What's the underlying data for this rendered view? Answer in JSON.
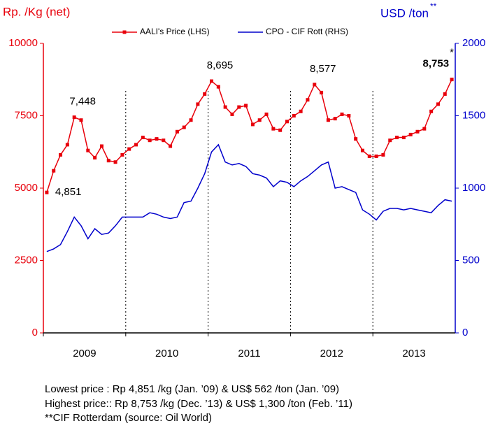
{
  "chart_data": {
    "type": "line",
    "y_label": "Rp. /Kg (net)",
    "y2_label": "USD /ton",
    "y2_label_mark": "**",
    "categories": [
      null,
      null,
      null,
      null,
      null,
      "2009",
      null,
      null,
      null,
      null,
      null,
      null,
      null,
      null,
      null,
      null,
      null,
      "2010",
      null,
      null,
      null,
      null,
      null,
      null,
      null,
      null,
      null,
      null,
      null,
      "2011",
      null,
      null,
      null,
      null,
      null,
      null,
      null,
      null,
      null,
      null,
      null,
      "2012",
      null,
      null,
      null,
      null,
      null,
      null,
      null,
      null,
      null,
      null,
      null,
      "2013",
      null,
      null,
      null,
      null,
      null,
      null
    ],
    "series": [
      {
        "name": "AALI's Price (LHS)",
        "color": "#e8000b",
        "axis": "y",
        "values": [
          4851,
          5600,
          6150,
          6500,
          7448,
          7350,
          6300,
          6050,
          6450,
          5950,
          5900,
          6150,
          6350,
          6500,
          6750,
          6650,
          6700,
          6650,
          6450,
          6950,
          7100,
          7350,
          7900,
          8250,
          8695,
          8500,
          7800,
          7550,
          7800,
          7850,
          7200,
          7350,
          7550,
          7050,
          7000,
          7300,
          7500,
          7650,
          8050,
          8577,
          8300,
          7350,
          7400,
          7550,
          7500,
          6700,
          6300,
          6100,
          6100,
          6150,
          6650,
          6750,
          6750,
          6850,
          6950,
          7050,
          7650,
          7900,
          8250,
          8753
        ],
        "value_labels": [
          "4,851",
          null,
          null,
          null,
          "7,448",
          null,
          null,
          null,
          null,
          null,
          null,
          null,
          null,
          null,
          null,
          null,
          null,
          null,
          null,
          null,
          null,
          null,
          null,
          null,
          "8,695",
          null,
          null,
          null,
          null,
          null,
          null,
          null,
          null,
          null,
          null,
          null,
          null,
          null,
          null,
          "8,577",
          null,
          null,
          null,
          null,
          null,
          null,
          null,
          null,
          null,
          null,
          null,
          null,
          null,
          null,
          null,
          null,
          null,
          null,
          null,
          "8,753"
        ]
      },
      {
        "name": "CPO - CIF Rott (RHS)",
        "color": "#0000cc",
        "axis": "y2",
        "values": [
          562,
          580,
          610,
          700,
          800,
          740,
          650,
          720,
          680,
          690,
          740,
          800,
          800,
          800,
          800,
          830,
          820,
          800,
          790,
          800,
          900,
          910,
          1000,
          1100,
          1250,
          1300,
          1180,
          1160,
          1170,
          1150,
          1100,
          1090,
          1070,
          1010,
          1050,
          1040,
          1010,
          1050,
          1080,
          1120,
          1160,
          1180,
          1000,
          1010,
          990,
          970,
          850,
          820,
          780,
          840,
          860,
          860,
          850,
          860,
          850,
          840,
          830,
          880,
          920,
          910
        ]
      }
    ],
    "annotation": "*",
    "ylim": [
      0,
      10000
    ],
    "yticks": [
      0,
      2500,
      5000,
      7500,
      10000
    ],
    "y2lim": [
      0,
      2000
    ],
    "y2ticks": [
      0,
      500,
      1000,
      1500,
      2000
    ],
    "legend": "top"
  },
  "notes": [
    "Lowest price : Rp 4,851 /kg (Jan. ’09) & US$ 562 /ton (Jan. ’09)",
    "Highest price:: Rp 8,753 /kg (Dec. ’13) & US$ 1,300 /ton (Feb. ’11)",
    "**CIF Rotterdam (source: Oil World)"
  ]
}
